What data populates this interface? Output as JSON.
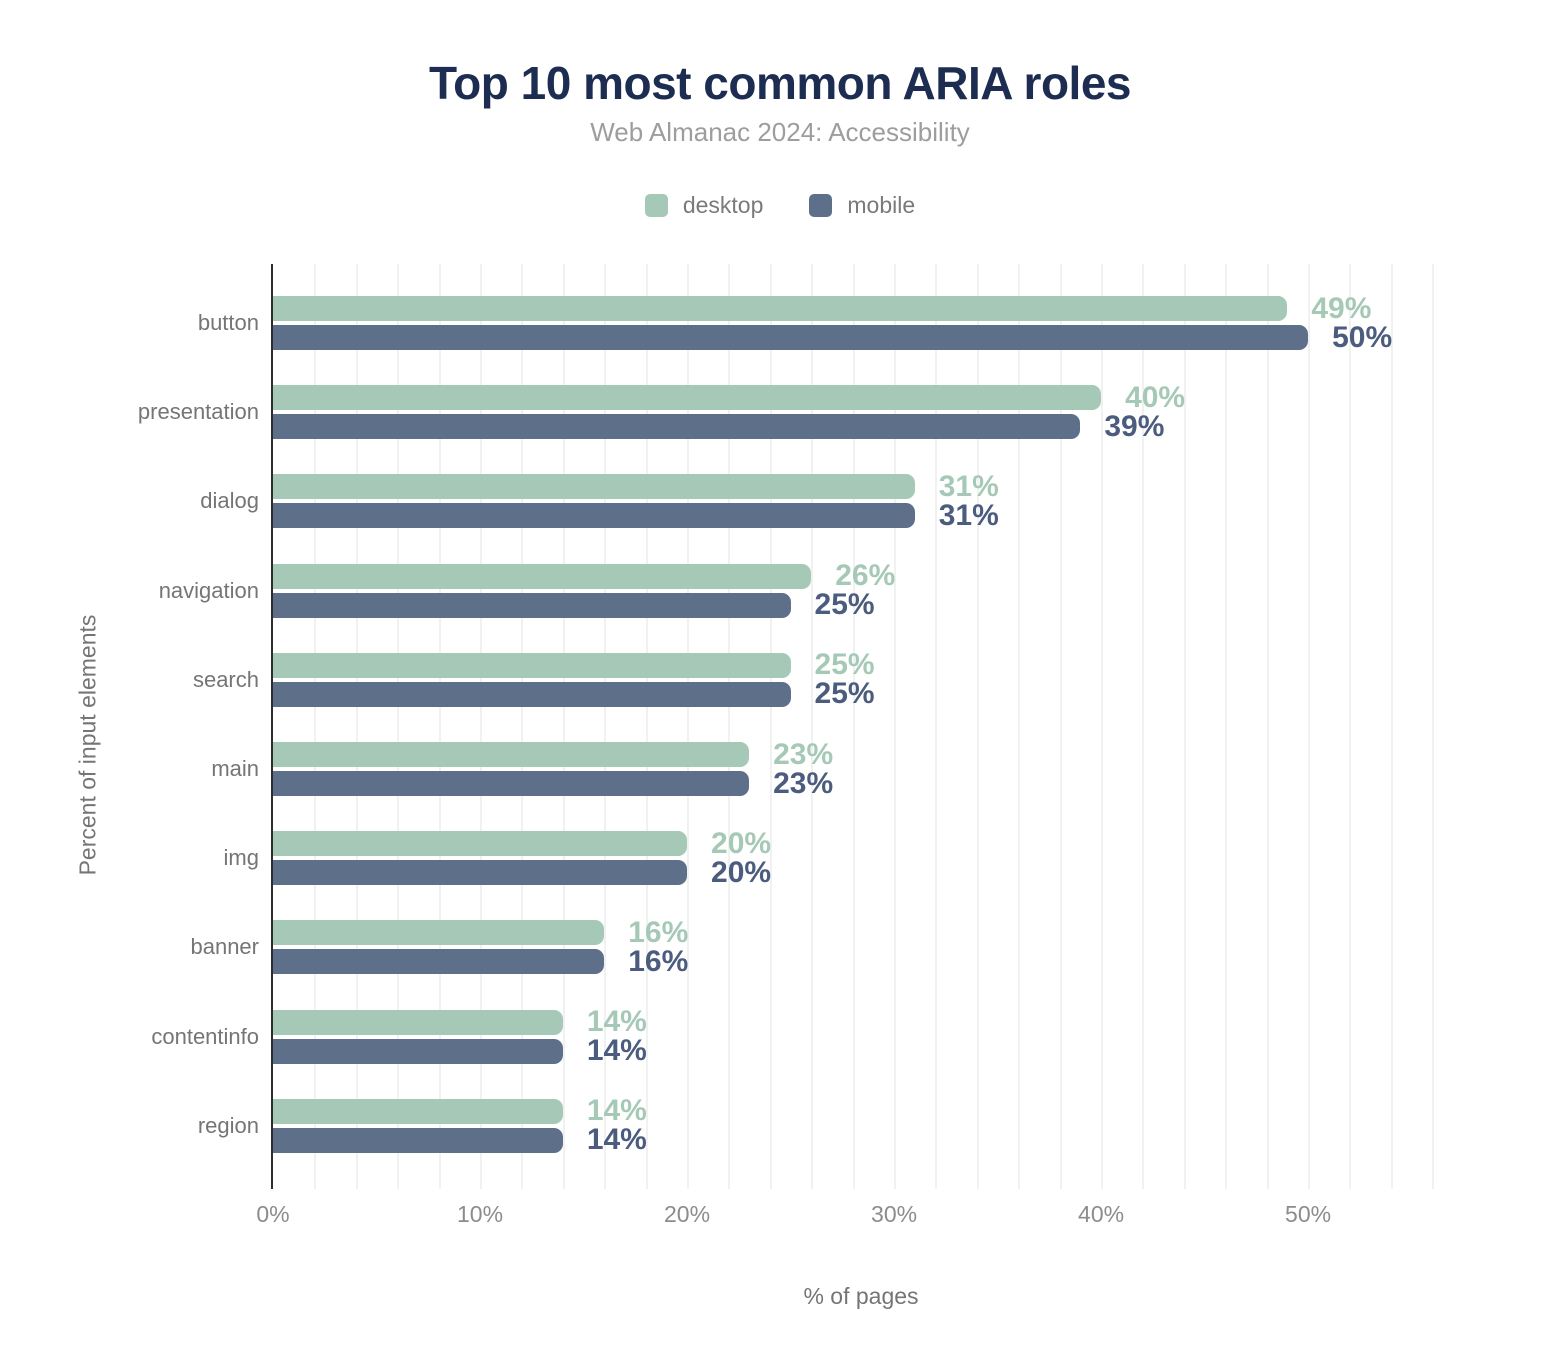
{
  "chart_data": {
    "type": "bar",
    "orientation": "horizontal",
    "title": "Top 10 most common ARIA roles",
    "subtitle": "Web Almanac 2024: Accessibility",
    "categories": [
      "button",
      "presentation",
      "dialog",
      "navigation",
      "search",
      "main",
      "img",
      "banner",
      "contentinfo",
      "region"
    ],
    "series": [
      {
        "name": "desktop",
        "values": [
          49,
          40,
          31,
          26,
          25,
          23,
          20,
          16,
          14,
          14
        ],
        "color": "#a6c9b7",
        "label_color": "#a6c9b7"
      },
      {
        "name": "mobile",
        "values": [
          50,
          39,
          31,
          25,
          25,
          23,
          20,
          16,
          14,
          14
        ],
        "color": "#5e7089",
        "label_color": "#4b5c7e"
      }
    ],
    "value_suffix": "%",
    "xlabel": "% of pages",
    "ylabel": "Percent of input elements",
    "xlim": [
      0,
      57
    ],
    "xticks": [
      0,
      10,
      20,
      30,
      40,
      50
    ],
    "tick_suffix": "%",
    "grid": true,
    "grid_step": 2,
    "legend_position": "top",
    "colors": {
      "title": "#1d2d52",
      "subtitle": "#9d9d9d",
      "axis_line": "#2d2d2d",
      "gridline": "#f1f1f1",
      "tick_label": "#8c8c8c",
      "category_label": "#757575"
    }
  }
}
